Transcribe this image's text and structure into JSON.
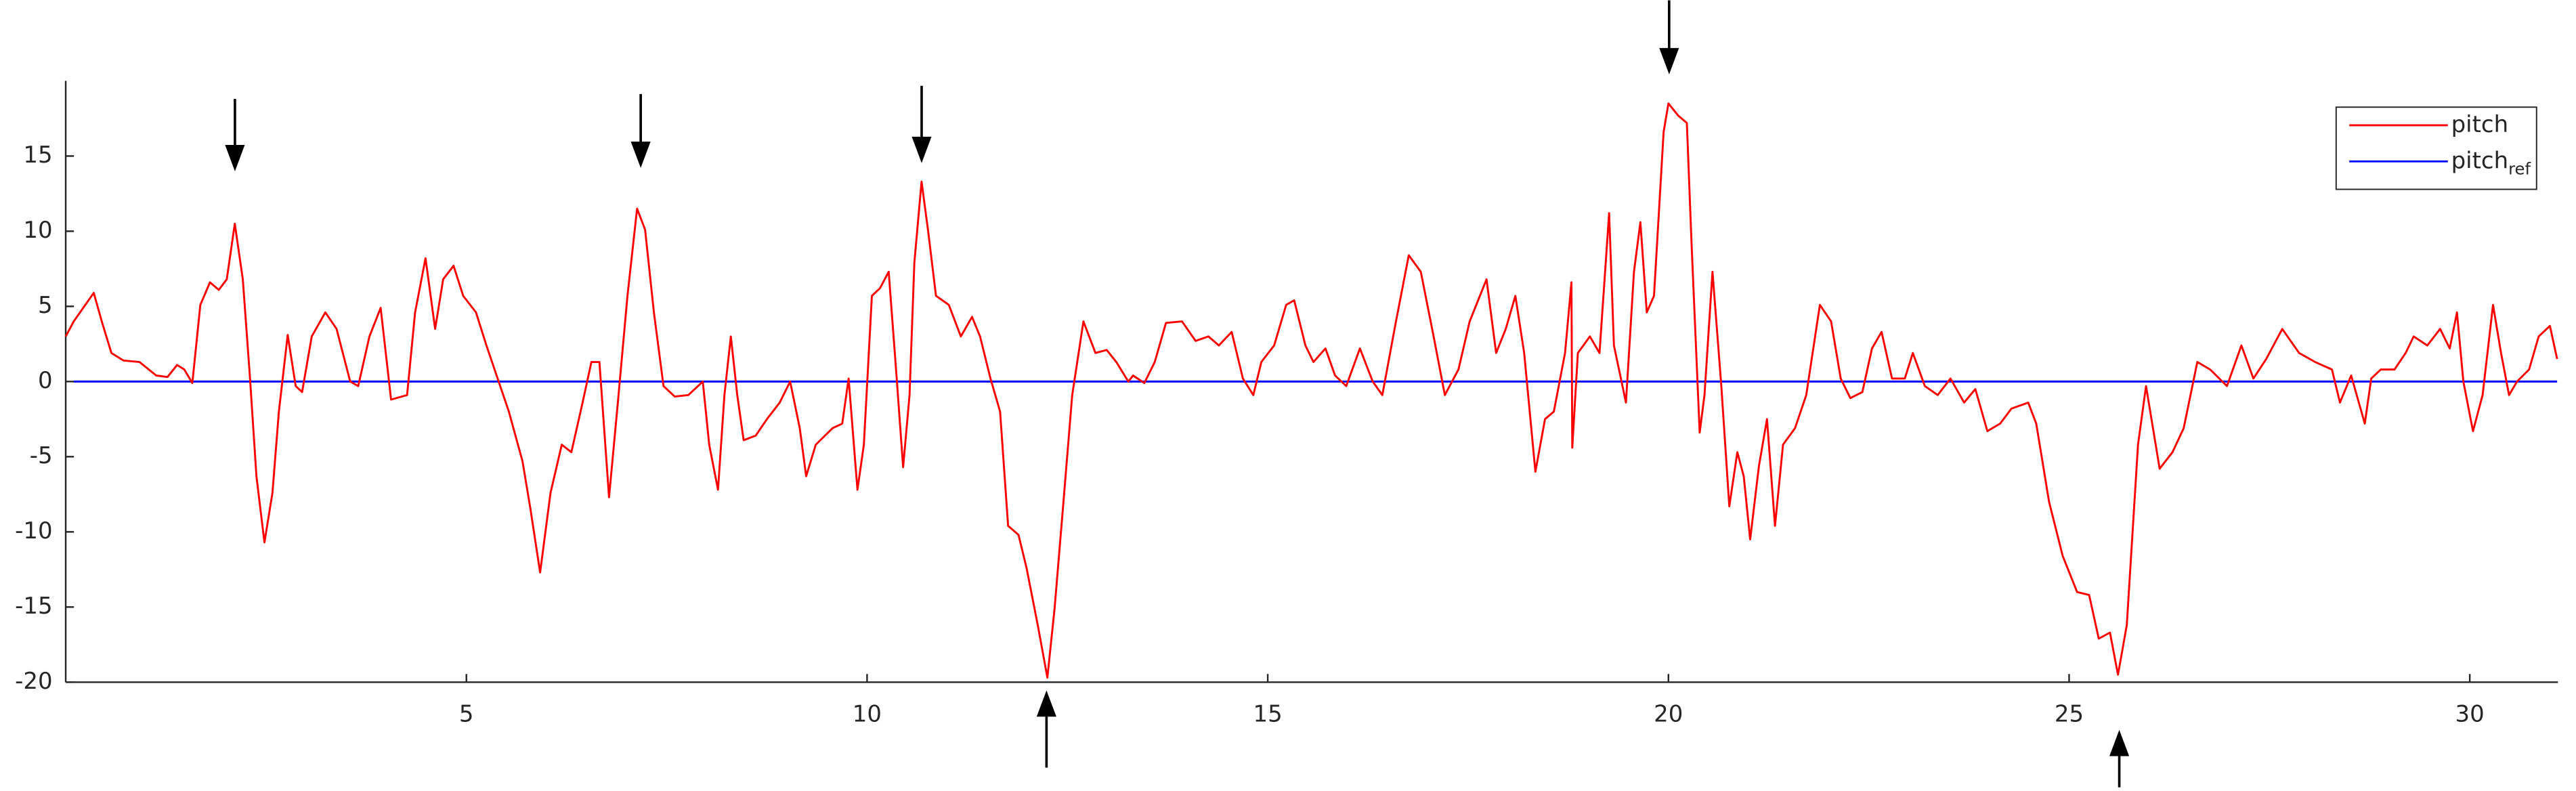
{
  "chart_data": {
    "type": "line",
    "xlim": [
      0,
      31.1
    ],
    "xticks": [
      5,
      10,
      15,
      20,
      25,
      30
    ],
    "ylim": [
      -20,
      20
    ],
    "yticks": [
      -20,
      -15,
      -10,
      -5,
      0,
      5,
      10,
      15
    ],
    "legend": "top-right",
    "series": [
      {
        "name": "pitch",
        "color": "#ff0000",
        "x": [
          0,
          0.1,
          0.35,
          0.45,
          0.57,
          0.72,
          0.92,
          1.13,
          1.27,
          1.39,
          1.48,
          1.58,
          1.68,
          1.8,
          1.91,
          2.01,
          2.11,
          2.21,
          2.3,
          2.38,
          2.48,
          2.58,
          2.66,
          2.77,
          2.87,
          2.95,
          3.07,
          3.24,
          3.38,
          3.55,
          3.65,
          3.79,
          3.93,
          4.06,
          4.26,
          4.36,
          4.49,
          4.61,
          4.71,
          4.84,
          4.96,
          5.12,
          5.25,
          5.39,
          5.53,
          5.7,
          5.8,
          5.92,
          6.05,
          6.19,
          6.31,
          6.45,
          6.56,
          6.66,
          6.78,
          6.89,
          7.01,
          7.13,
          7.23,
          7.34,
          7.46,
          7.6,
          7.77,
          7.95,
          8.03,
          8.14,
          8.22,
          8.3,
          8.38,
          8.46,
          8.61,
          8.75,
          8.91,
          9.04,
          9.16,
          9.24,
          9.36,
          9.57,
          9.69,
          9.77,
          9.88,
          9.96,
          10.06,
          10.16,
          10.27,
          10.37,
          10.45,
          10.53,
          10.59,
          10.68,
          10.76,
          10.86,
          11.02,
          11.17,
          11.31,
          11.41,
          11.54,
          11.66,
          11.76,
          11.89,
          11.99,
          12.13,
          12.25,
          12.34,
          12.46,
          12.56,
          12.7,
          12.85,
          12.99,
          13.11,
          13.26,
          13.32,
          13.46,
          13.59,
          13.73,
          13.93,
          14.1,
          14.26,
          14.39,
          14.55,
          14.69,
          14.82,
          14.92,
          15.08,
          15.23,
          15.33,
          15.47,
          15.57,
          15.72,
          15.84,
          15.98,
          16.15,
          16.31,
          16.43,
          16.6,
          16.76,
          16.91,
          17.07,
          17.21,
          17.38,
          17.52,
          17.73,
          17.85,
          17.97,
          18.09,
          18.2,
          18.34,
          18.46,
          18.57,
          18.71,
          18.79,
          18.8,
          18.87,
          19.02,
          19.14,
          19.26,
          19.32,
          19.47,
          19.57,
          19.65,
          19.73,
          19.82,
          19.94,
          20.0,
          20.12,
          20.23,
          20.29,
          20.39,
          20.45,
          20.55,
          20.66,
          20.76,
          20.86,
          20.94,
          21.02,
          21.13,
          21.23,
          21.33,
          21.43,
          21.58,
          21.72,
          21.89,
          22.03,
          22.15,
          22.27,
          22.42,
          22.54,
          22.66,
          22.79,
          22.95,
          23.05,
          23.2,
          23.36,
          23.52,
          23.69,
          23.83,
          23.98,
          24.14,
          24.28,
          24.49,
          24.59,
          24.75,
          24.92,
          25.1,
          25.25,
          25.37,
          25.51,
          25.61,
          25.72,
          25.86,
          25.96,
          26.13,
          26.29,
          26.43,
          26.6,
          26.76,
          26.97,
          27.15,
          27.3,
          27.46,
          27.66,
          27.87,
          28.07,
          28.28,
          28.38,
          28.52,
          28.69,
          28.77,
          28.89,
          29.06,
          29.2,
          29.3,
          29.47,
          29.63,
          29.75,
          29.84,
          29.92,
          30.04,
          30.16,
          30.29,
          30.39,
          30.49,
          30.59,
          30.74,
          30.86,
          31.0,
          31.09
        ],
        "values": [
          3.0,
          4.0,
          5.9,
          4.0,
          1.9,
          1.4,
          1.3,
          0.4,
          0.3,
          1.1,
          0.8,
          -0.1,
          5.1,
          6.6,
          6.1,
          6.8,
          10.5,
          6.8,
          0.2,
          -6.3,
          -10.7,
          -7.4,
          -2.0,
          3.1,
          -0.3,
          -0.7,
          3.0,
          4.6,
          3.5,
          0,
          -0.3,
          3.0,
          4.9,
          -1.2,
          -0.9,
          4.6,
          8.2,
          3.5,
          6.8,
          7.7,
          5.7,
          4.6,
          2.4,
          0.2,
          -2.0,
          -5.3,
          -8.5,
          -12.7,
          -7.4,
          -4.2,
          -4.7,
          -1.4,
          1.3,
          1.3,
          -7.7,
          -1.4,
          5.7,
          11.5,
          10.1,
          4.6,
          -0.3,
          -1.0,
          -0.9,
          0,
          -4.2,
          -7.2,
          -0.9,
          3.0,
          -0.9,
          -3.9,
          -3.6,
          -2.5,
          -1.4,
          0,
          -3.1,
          -6.3,
          -4.2,
          -3.1,
          -2.8,
          0.2,
          -7.2,
          -4.2,
          5.7,
          6.2,
          7.3,
          0.2,
          -5.7,
          -0.9,
          7.9,
          13.3,
          10.1,
          5.7,
          5.1,
          3.0,
          4.3,
          3.0,
          0.2,
          -2.0,
          -9.6,
          -10.2,
          -12.4,
          -16.2,
          -19.7,
          -15.1,
          -7.4,
          -0.9,
          4.0,
          1.9,
          2.1,
          1.3,
          0,
          0.4,
          -0.1,
          1.3,
          3.9,
          4.0,
          2.7,
          3.0,
          2.4,
          3.3,
          0.2,
          -0.9,
          1.3,
          2.4,
          5.1,
          5.4,
          2.4,
          1.3,
          2.2,
          0.4,
          -0.3,
          2.2,
          0,
          -0.9,
          4.0,
          8.4,
          7.3,
          3.0,
          -0.9,
          0.8,
          4.0,
          6.8,
          1.9,
          3.5,
          5.7,
          1.9,
          -6.0,
          -2.5,
          -2.0,
          1.9,
          6.6,
          -4.4,
          1.9,
          3.0,
          1.9,
          11.2,
          2.4,
          -1.4,
          7.3,
          10.6,
          4.6,
          5.7,
          16.6,
          18.5,
          17.7,
          17.2,
          9.0,
          -3.4,
          -0.9,
          7.3,
          -0.3,
          -8.3,
          -4.7,
          -6.3,
          -10.5,
          -5.6,
          -2.5,
          -9.6,
          -4.2,
          -3.1,
          -0.9,
          5.1,
          4.0,
          0.2,
          -1.1,
          -0.7,
          2.2,
          3.3,
          0.2,
          0.2,
          1.9,
          -0.3,
          -0.9,
          0.2,
          -1.4,
          -0.5,
          -3.3,
          -2.8,
          -1.8,
          -1.4,
          -2.8,
          -8.0,
          -11.6,
          -14.0,
          -14.2,
          -17.1,
          -16.7,
          -19.5,
          -16.2,
          -4.2,
          -0.3,
          -5.8,
          -4.7,
          -3.1,
          1.3,
          0.8,
          -0.3,
          2.4,
          0.2,
          1.5,
          3.5,
          1.9,
          1.3,
          0.8,
          -1.4,
          0.4,
          -2.8,
          0.2,
          0.8,
          0.8,
          1.9,
          3.0,
          2.4,
          3.5,
          2.2,
          4.6,
          0,
          -3.3,
          -0.9,
          5.1,
          1.9,
          -0.9,
          0,
          0.8,
          3.0,
          3.7,
          1.5
        ]
      },
      {
        "name": "pitch",
        "subscript": "ref",
        "color": "#0000ff",
        "x": [
          0.1,
          31.09
        ],
        "values": [
          0,
          0
        ]
      }
    ]
  }
}
